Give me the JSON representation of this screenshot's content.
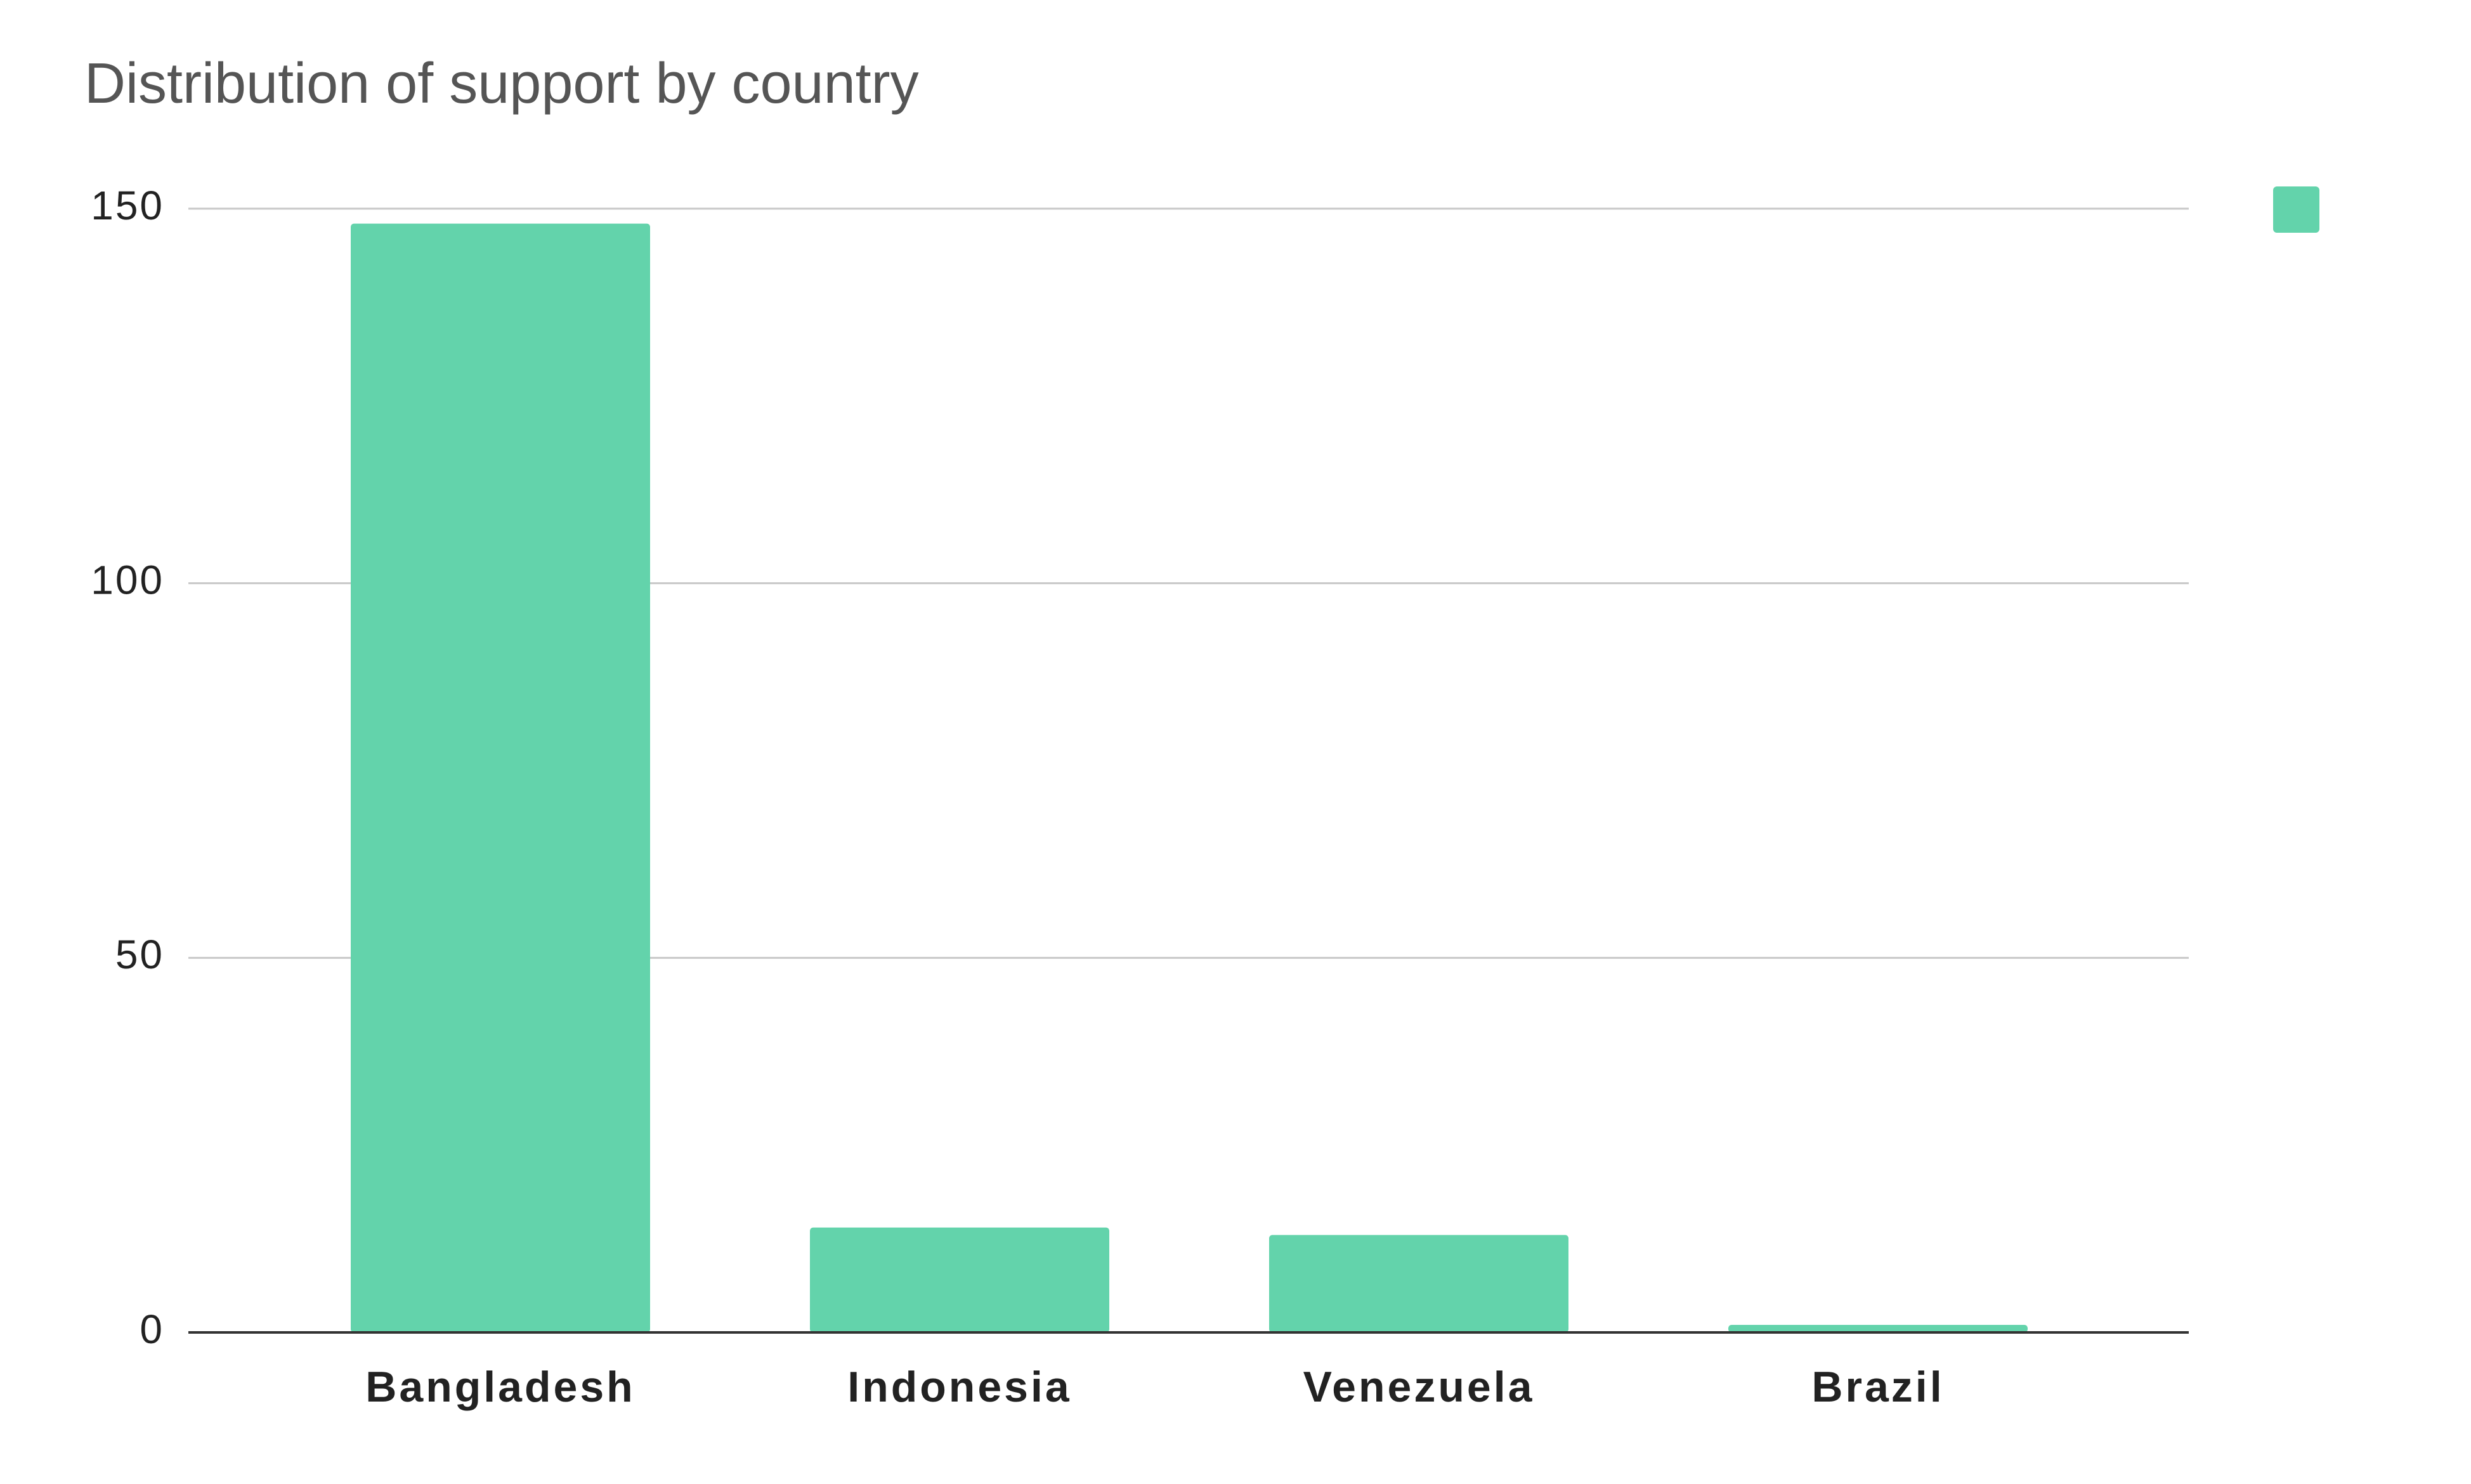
{
  "chart_data": {
    "type": "bar",
    "title": "Distribution of support by country",
    "categories": [
      "Bangladesh",
      "Indonesia",
      "Venezuela",
      "Brazil"
    ],
    "values": [
      148,
      14,
      13,
      1
    ],
    "color": "#63d3ab",
    "ylim": [
      0,
      150
    ],
    "yticks": [
      0,
      50,
      100,
      150
    ],
    "grid": true,
    "legend": "top-right"
  }
}
